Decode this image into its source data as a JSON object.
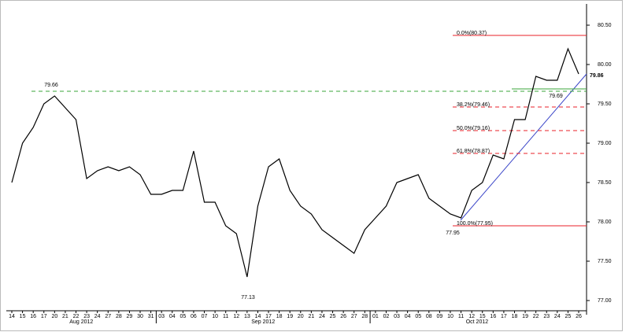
{
  "chart_data": {
    "type": "line",
    "categories": [
      "14",
      "15",
      "16",
      "17",
      "20",
      "21",
      "22",
      "23",
      "24",
      "27",
      "28",
      "29",
      "30",
      "31",
      "03",
      "04",
      "05",
      "06",
      "07",
      "10",
      "11",
      "12",
      "13",
      "14",
      "17",
      "18",
      "19",
      "20",
      "21",
      "24",
      "25",
      "26",
      "27",
      "28",
      "01",
      "02",
      "03",
      "04",
      "05",
      "08",
      "09",
      "10",
      "11",
      "12",
      "15",
      "16",
      "17",
      "18",
      "19",
      "22",
      "23",
      "24",
      "25",
      "26"
    ],
    "month_labels": [
      "Aug 2012",
      "Sep 2012",
      "Oct 2012"
    ],
    "values": [
      78.5,
      79.0,
      79.2,
      79.5,
      79.6,
      79.45,
      79.3,
      78.55,
      78.65,
      78.7,
      78.65,
      78.7,
      78.6,
      78.35,
      78.35,
      78.4,
      78.4,
      78.9,
      78.25,
      78.25,
      77.95,
      77.85,
      77.3,
      78.2,
      78.7,
      78.8,
      78.4,
      78.2,
      78.1,
      77.9,
      77.8,
      77.7,
      77.6,
      77.9,
      78.05,
      78.2,
      78.5,
      78.55,
      78.6,
      78.3,
      78.2,
      78.1,
      78.05,
      78.4,
      78.5,
      78.85,
      78.8,
      79.3,
      79.3,
      79.85,
      79.8,
      79.8,
      80.2,
      79.88
    ],
    "color": "#000000",
    "ylim": [
      76.87,
      80.77
    ],
    "yticks": [
      {
        "value": 77,
        "label": "77.00"
      },
      {
        "value": 77.5,
        "label": "77.50"
      },
      {
        "value": 78,
        "label": "78.00"
      },
      {
        "value": 78.5,
        "label": "78.50"
      },
      {
        "value": 79,
        "label": "79.00"
      },
      {
        "value": 79.5,
        "label": "79.50"
      },
      {
        "value": 80,
        "label": "80.00"
      },
      {
        "value": 80.5,
        "label": "80.50"
      }
    ],
    "last_price": {
      "value": 79.86,
      "label": "79.86"
    },
    "annotations": [
      {
        "label": "79.66",
        "value": 79.66
      },
      {
        "label": "77.13",
        "value": 77.13
      },
      {
        "label": "77.95",
        "value": 77.95
      },
      {
        "label": "79.69",
        "value": 79.69
      }
    ],
    "fibonacci": [
      {
        "label": "0.0%(80.37)",
        "value": 80.37
      },
      {
        "label": "38.2%(79.46)",
        "value": 79.46
      },
      {
        "label": "50.0%(79.16)",
        "value": 79.16
      },
      {
        "label": "61.8%(78.87)",
        "value": 78.87
      },
      {
        "label": "100.0%(77.95)",
        "value": 77.95
      }
    ],
    "fib_color": "#e8202a",
    "level_color": "#3aa63a",
    "trend_color": "#3a45c8"
  }
}
